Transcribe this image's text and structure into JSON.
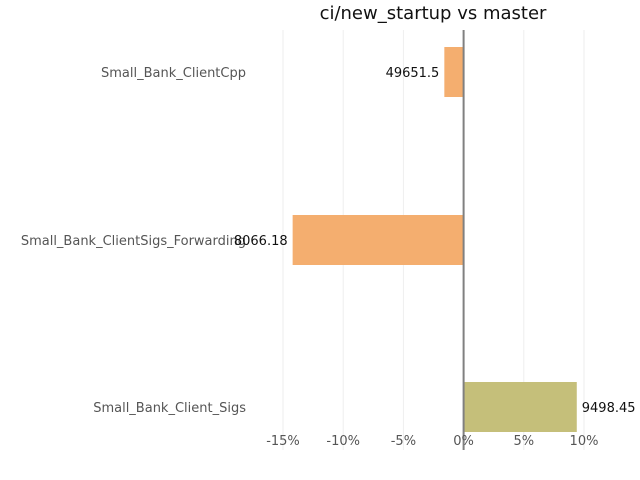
{
  "chart_data": {
    "type": "bar",
    "orientation": "horizontal",
    "title": "ci/new_startup vs master",
    "xlabel": "",
    "ylabel": "",
    "categories": [
      "Small_Bank_ClientCpp",
      "Small_Bank_ClientSigs_Forwarding",
      "Small_Bank_Client_Sigs"
    ],
    "values": [
      -1.6,
      -14.2,
      9.4
    ],
    "value_labels": [
      "49651.5",
      "8066.18",
      "9498.45"
    ],
    "colors": [
      "#f4ae6f",
      "#f4ae6f",
      "#c5bf7a"
    ],
    "xlim": [
      -15,
      10
    ],
    "xticks": [
      -15,
      -10,
      -5,
      0,
      5,
      10
    ],
    "xtick_labels": [
      "-15%",
      "-10%",
      "-5%",
      "0%",
      "5%",
      "10%"
    ],
    "grid": true,
    "legend": "none"
  }
}
